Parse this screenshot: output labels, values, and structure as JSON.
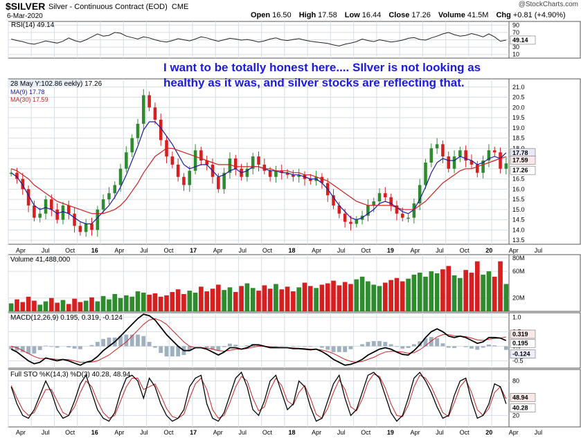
{
  "header": {
    "symbol": "$SILVER",
    "description": "Silver - Continuous Contract (EOD)",
    "exchange": "CME",
    "date": "6-Mar-2020",
    "open_label": "Open",
    "open": "16.50",
    "high_label": "High",
    "high": "17.58",
    "low_label": "Low",
    "low": "16.44",
    "close_label": "Close",
    "close": "17.26",
    "volume_label": "Volume",
    "volume": "41.5M",
    "chg_label": "Chg",
    "chg": "+0.81 (+4.90%)",
    "brand": "@StockCharts.com"
  },
  "annotation": {
    "line1": "I want to be totally honest here....  SIlver is not looking as",
    "line2": "healthy as it was, and silver stocks are reflecting that."
  },
  "colors": {
    "up": "#2e8b2e",
    "down": "#d62020",
    "ma9": "#1a1aa0",
    "ma30": "#cc2020",
    "annotation": "#1a1ae0",
    "grid": "#d6dde4",
    "stok": "#000000",
    "stod": "#cc2020"
  },
  "chart_data": [
    {
      "type": "line",
      "panel": "rsi",
      "legend": "RSI(14) 49.14",
      "y_ticks": [
        "90",
        "70",
        "50",
        "30",
        "10"
      ],
      "last_value": "49.14",
      "ylim": [
        0,
        100
      ],
      "series": [
        {
          "name": "RSI(14)",
          "values": [
            52,
            48,
            45,
            40,
            38,
            42,
            47,
            44,
            41,
            46,
            55,
            48,
            44,
            50,
            58,
            66,
            60,
            62,
            70,
            68,
            60,
            56,
            52,
            58,
            55,
            50,
            46,
            44,
            48,
            53,
            50,
            47,
            52,
            58,
            55,
            50,
            46,
            50,
            54,
            52,
            49,
            51,
            48,
            44,
            47,
            52,
            55,
            50,
            48,
            51,
            53,
            49,
            46,
            44,
            42,
            40,
            36,
            33,
            38,
            41,
            45,
            52,
            48,
            45,
            50,
            47,
            44,
            46,
            49,
            54,
            56,
            51,
            49,
            55,
            60,
            66,
            70,
            64,
            60,
            62,
            67,
            63,
            58,
            66,
            58,
            46,
            49
          ]
        }
      ]
    },
    {
      "type": "line",
      "panel": "price",
      "legend": "28 May Y:102.86 eekly) 17.26",
      "ma_legends": [
        "MA(9) 17.78",
        "MA(30) 17.59"
      ],
      "y_ticks": [
        "21.0",
        "20.5",
        "20.0",
        "19.5",
        "19.0",
        "18.5",
        "18.0",
        "17.5",
        "17.0",
        "16.5",
        "16.0",
        "15.5",
        "15.0",
        "14.5",
        "14.0",
        "13.5"
      ],
      "x_ticks": [
        "Apr",
        "Jul",
        "Oct",
        "16",
        "Apr",
        "Jul",
        "Oct",
        "17",
        "Apr",
        "Jul",
        "Oct",
        "18",
        "Apr",
        "Jul",
        "Oct",
        "19",
        "Apr",
        "Jul",
        "Oct",
        "20",
        "Apr",
        "Jul"
      ],
      "price_labels": [
        "17.78",
        "17.59",
        "17.26"
      ],
      "ylim": [
        13.3,
        21.4
      ],
      "series": [
        {
          "name": "Weekly",
          "values": [
            16.8,
            16.5,
            16.0,
            15.2,
            14.6,
            14.8,
            15.5,
            15.0,
            14.5,
            15.2,
            14.8,
            14.2,
            13.9,
            14.3,
            14.0,
            15.0,
            15.5,
            15.8,
            16.2,
            17.0,
            17.8,
            18.5,
            19.2,
            20.6,
            20.0,
            19.4,
            18.4,
            17.6,
            17.2,
            16.6,
            16.2,
            16.9,
            17.9,
            17.4,
            17.2,
            16.6,
            16.0,
            16.8,
            17.5,
            17.0,
            16.6,
            17.0,
            17.6,
            17.2,
            16.9,
            16.6,
            16.9,
            16.8,
            16.7,
            16.6,
            16.7,
            16.5,
            16.4,
            16.6,
            16.3,
            15.7,
            15.2,
            14.8,
            14.4,
            14.3,
            14.5,
            14.7,
            15.2,
            15.4,
            15.8,
            15.6,
            15.2,
            14.8,
            14.6,
            14.6,
            15.3,
            16.2,
            17.3,
            18.0,
            18.2,
            17.6,
            17.0,
            17.6,
            17.9,
            17.4,
            17.2,
            16.8,
            17.4,
            17.9,
            17.8,
            17.0,
            17.26
          ]
        },
        {
          "name": "MA(9)",
          "values": [
            16.8,
            16.6,
            16.2,
            15.7,
            15.2,
            15.0,
            15.1,
            15.0,
            14.8,
            14.9,
            14.8,
            14.6,
            14.4,
            14.3,
            14.3,
            14.6,
            14.9,
            15.2,
            15.6,
            16.1,
            16.7,
            17.4,
            18.1,
            18.9,
            19.3,
            19.3,
            19.0,
            18.6,
            18.2,
            17.7,
            17.2,
            17.0,
            17.1,
            17.2,
            17.2,
            16.9,
            16.6,
            16.7,
            16.9,
            17.0,
            16.8,
            16.9,
            17.1,
            17.1,
            17.0,
            16.9,
            16.9,
            16.8,
            16.8,
            16.7,
            16.7,
            16.6,
            16.5,
            16.5,
            16.3,
            16.0,
            15.6,
            15.2,
            14.9,
            14.6,
            14.5,
            14.6,
            14.8,
            15.0,
            15.3,
            15.4,
            15.3,
            15.1,
            14.9,
            14.8,
            15.0,
            15.5,
            16.1,
            16.8,
            17.3,
            17.5,
            17.4,
            17.4,
            17.6,
            17.5,
            17.4,
            17.2,
            17.3,
            17.5,
            17.6,
            17.5,
            17.78
          ]
        },
        {
          "name": "MA(30)",
          "values": [
            17.0,
            16.9,
            16.7,
            16.5,
            16.2,
            16.0,
            15.8,
            15.6,
            15.4,
            15.3,
            15.2,
            15.1,
            15.0,
            14.9,
            14.8,
            14.8,
            14.8,
            14.9,
            15.0,
            15.2,
            15.5,
            15.9,
            16.3,
            16.8,
            17.2,
            17.6,
            17.8,
            18.0,
            18.0,
            17.9,
            17.8,
            17.7,
            17.6,
            17.5,
            17.4,
            17.3,
            17.2,
            17.2,
            17.2,
            17.1,
            17.1,
            17.1,
            17.1,
            17.1,
            17.0,
            17.0,
            16.9,
            16.9,
            16.9,
            16.8,
            16.8,
            16.7,
            16.7,
            16.6,
            16.5,
            16.4,
            16.2,
            16.0,
            15.8,
            15.6,
            15.4,
            15.3,
            15.2,
            15.2,
            15.2,
            15.2,
            15.2,
            15.1,
            15.0,
            15.0,
            15.0,
            15.2,
            15.4,
            15.7,
            16.0,
            16.3,
            16.5,
            16.7,
            16.9,
            17.0,
            17.0,
            17.1,
            17.2,
            17.3,
            17.4,
            17.5,
            17.59
          ]
        }
      ]
    },
    {
      "type": "bar",
      "panel": "volume",
      "legend": "Volume 41,488,000",
      "y_ticks": [
        "80M",
        "60M",
        "41488",
        "20M"
      ],
      "ylim": [
        0,
        85
      ],
      "series": [
        {
          "name": "Volume",
          "values": [
            12,
            18,
            14,
            22,
            16,
            10,
            15,
            20,
            13,
            17,
            11,
            19,
            14,
            16,
            21,
            15,
            23,
            18,
            26,
            20,
            24,
            22,
            30,
            28,
            25,
            27,
            22,
            24,
            29,
            33,
            26,
            31,
            28,
            37,
            30,
            34,
            40,
            32,
            36,
            29,
            38,
            42,
            35,
            31,
            39,
            34,
            41,
            33,
            37,
            30,
            36,
            43,
            38,
            35,
            40,
            42,
            46,
            39,
            44,
            41,
            48,
            52,
            45,
            40,
            38,
            43,
            47,
            50,
            45,
            49,
            55,
            58,
            52,
            60,
            57,
            63,
            68,
            54,
            50,
            62,
            58,
            75,
            55,
            60,
            52,
            75,
            41
          ]
        }
      ]
    },
    {
      "type": "line",
      "panel": "macd",
      "legend": "MACD(12,26,9) 0.195, 0.319, -0.124",
      "y_ticks": [
        "1.0",
        "0.5",
        "0.0",
        "-0.5"
      ],
      "price_labels": [
        "0.319",
        "0.195",
        "-0.124"
      ],
      "ylim": [
        -0.75,
        1.15
      ],
      "series": [
        {
          "name": "MACD",
          "values": [
            -0.1,
            -0.2,
            -0.35,
            -0.5,
            -0.6,
            -0.55,
            -0.4,
            -0.45,
            -0.5,
            -0.45,
            -0.5,
            -0.58,
            -0.65,
            -0.55,
            -0.5,
            -0.35,
            -0.15,
            0.0,
            0.15,
            0.35,
            0.55,
            0.75,
            0.95,
            1.1,
            1.05,
            0.9,
            0.65,
            0.4,
            0.2,
            0.0,
            -0.15,
            -0.15,
            -0.05,
            -0.05,
            -0.1,
            -0.2,
            -0.3,
            -0.2,
            -0.05,
            -0.05,
            -0.1,
            -0.05,
            0.05,
            0.05,
            0.0,
            -0.05,
            -0.05,
            -0.05,
            -0.05,
            -0.08,
            -0.08,
            -0.1,
            -0.12,
            -0.1,
            -0.18,
            -0.3,
            -0.45,
            -0.55,
            -0.65,
            -0.62,
            -0.55,
            -0.45,
            -0.3,
            -0.2,
            -0.1,
            -0.05,
            -0.1,
            -0.2,
            -0.28,
            -0.3,
            -0.15,
            0.05,
            0.3,
            0.5,
            0.6,
            0.5,
            0.35,
            0.3,
            0.35,
            0.3,
            0.2,
            0.1,
            0.15,
            0.3,
            0.3,
            0.28,
            0.195
          ]
        },
        {
          "name": "Signal",
          "values": [
            0.0,
            -0.05,
            -0.15,
            -0.25,
            -0.35,
            -0.42,
            -0.42,
            -0.43,
            -0.45,
            -0.45,
            -0.46,
            -0.5,
            -0.55,
            -0.55,
            -0.54,
            -0.5,
            -0.4,
            -0.3,
            -0.15,
            0.0,
            0.15,
            0.35,
            0.55,
            0.75,
            0.9,
            0.95,
            0.88,
            0.75,
            0.55,
            0.35,
            0.15,
            0.0,
            -0.05,
            -0.05,
            -0.06,
            -0.1,
            -0.15,
            -0.17,
            -0.14,
            -0.1,
            -0.1,
            -0.08,
            -0.03,
            0.0,
            0.0,
            -0.02,
            -0.03,
            -0.04,
            -0.05,
            -0.06,
            -0.07,
            -0.08,
            -0.1,
            -0.1,
            -0.13,
            -0.18,
            -0.25,
            -0.35,
            -0.45,
            -0.52,
            -0.55,
            -0.52,
            -0.45,
            -0.38,
            -0.28,
            -0.2,
            -0.17,
            -0.18,
            -0.2,
            -0.24,
            -0.22,
            -0.12,
            0.02,
            0.18,
            0.32,
            0.4,
            0.4,
            0.36,
            0.35,
            0.33,
            0.28,
            0.22,
            0.2,
            0.24,
            0.27,
            0.28,
            0.319
          ]
        }
      ]
    },
    {
      "type": "line",
      "panel": "sto",
      "legend": "Full STO %K(14,3) %D(3) 40.28, 48.94",
      "y_ticks": [
        "80",
        "50",
        "20"
      ],
      "price_labels": [
        "48.94",
        "40.28"
      ],
      "ylim": [
        0,
        100
      ],
      "series": [
        {
          "name": "%K",
          "values": [
            70,
            40,
            20,
            15,
            30,
            55,
            80,
            60,
            30,
            15,
            20,
            45,
            75,
            90,
            60,
            30,
            15,
            10,
            25,
            60,
            85,
            90,
            80,
            50,
            85,
            70,
            40,
            20,
            10,
            15,
            30,
            70,
            85,
            90,
            40,
            15,
            10,
            25,
            55,
            85,
            95,
            70,
            30,
            20,
            45,
            80,
            90,
            60,
            30,
            40,
            80,
            70,
            35,
            10,
            15,
            45,
            75,
            90,
            50,
            20,
            30,
            60,
            90,
            95,
            85,
            55,
            25,
            10,
            20,
            50,
            85,
            95,
            80,
            60,
            35,
            15,
            20,
            55,
            80,
            85,
            45,
            15,
            20,
            40,
            75,
            70,
            40.28
          ]
        },
        {
          "name": "%D",
          "values": [
            72,
            50,
            30,
            20,
            25,
            45,
            65,
            65,
            45,
            25,
            20,
            35,
            60,
            80,
            70,
            45,
            25,
            15,
            20,
            45,
            70,
            85,
            85,
            65,
            70,
            75,
            55,
            32,
            18,
            15,
            22,
            50,
            75,
            85,
            65,
            30,
            15,
            20,
            42,
            70,
            88,
            80,
            50,
            28,
            35,
            65,
            85,
            72,
            45,
            38,
            60,
            72,
            50,
            22,
            15,
            32,
            60,
            82,
            65,
            35,
            28,
            48,
            78,
            92,
            88,
            68,
            40,
            20,
            18,
            38,
            70,
            90,
            85,
            70,
            48,
            25,
            18,
            42,
            70,
            82,
            60,
            30,
            20,
            32,
            60,
            70,
            48.94
          ]
        }
      ]
    }
  ]
}
